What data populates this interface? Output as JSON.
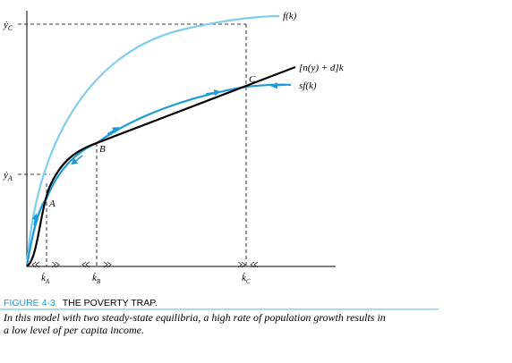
{
  "axis_labels": {
    "yC": {
      "symbol": "ẏ",
      "sub": "C"
    },
    "yA": {
      "symbol": "ẏ",
      "sub": "A"
    },
    "kA": {
      "symbol": "k̇",
      "sub": "A"
    },
    "kB": {
      "symbol": "k̇",
      "sub": "B"
    },
    "kC": {
      "symbol": "k̇",
      "sub": "C"
    }
  },
  "curves": [
    "f(k)",
    "[n(y) + d]k",
    "sf(k)"
  ],
  "points": [
    "A",
    "B",
    "C"
  ],
  "caption": {
    "number": "FIGURE 4-3",
    "title": "THE POVERTY TRAP.",
    "lines": [
      "In this model with two steady-state equilibria, a high rate of population growth results in",
      "a low level of per capita income."
    ]
  }
}
